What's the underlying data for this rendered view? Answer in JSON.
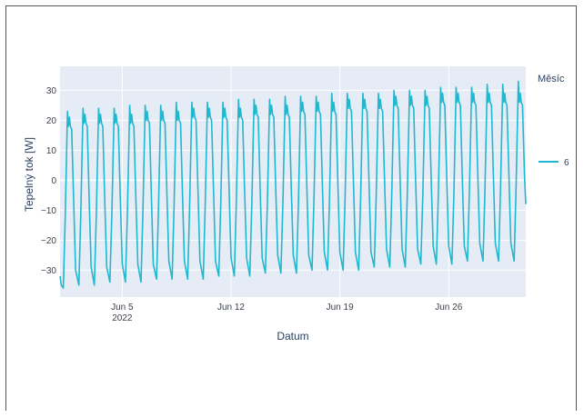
{
  "chart_data": {
    "type": "line",
    "xlabel": "Datum",
    "ylabel": "Tepelný tok [W]",
    "x_ticks": [
      {
        "date": "2022-06-05",
        "label": "Jun 5",
        "sublabel": "2022"
      },
      {
        "date": "2022-06-12",
        "label": "Jun 12",
        "sublabel": ""
      },
      {
        "date": "2022-06-19",
        "label": "Jun 19",
        "sublabel": ""
      },
      {
        "date": "2022-06-26",
        "label": "Jun 26",
        "sublabel": ""
      }
    ],
    "y_ticks": [
      30,
      20,
      10,
      0,
      -10,
      -20,
      -30
    ],
    "xlim": [
      "2022-06-01",
      "2022-06-30T23:00"
    ],
    "ylim": [
      -39,
      38
    ],
    "grid": true,
    "legend": {
      "title": "Měsíc",
      "position": "right"
    },
    "series": [
      {
        "name": "6",
        "color": "#1fb8cf",
        "daily_max": [
          23,
          24,
          24,
          24,
          25,
          25,
          25,
          26,
          26,
          26,
          26,
          27,
          27,
          27,
          28,
          28,
          28,
          29,
          29,
          29,
          29,
          30,
          30,
          30,
          31,
          31,
          31,
          32,
          32,
          33
        ],
        "daily_plateau": [
          18,
          19,
          19,
          19,
          19,
          20,
          20,
          20,
          21,
          21,
          21,
          21,
          22,
          22,
          22,
          23,
          23,
          23,
          24,
          24,
          24,
          25,
          25,
          25,
          26,
          26,
          26,
          26,
          26,
          26
        ],
        "daily_min": [
          -36,
          -35,
          -35,
          -34,
          -34,
          -34,
          -33,
          -33,
          -33,
          -33,
          -32,
          -32,
          -32,
          -31,
          -31,
          -31,
          -30,
          -30,
          -30,
          -30,
          -29,
          -29,
          -29,
          -28,
          -28,
          -28,
          -27,
          -27,
          -27,
          -27
        ],
        "last_value": -8
      }
    ]
  },
  "colors": {
    "plot_bg": "#e5ecf6",
    "grid": "#ffffff",
    "line": "#1fb8cf"
  }
}
